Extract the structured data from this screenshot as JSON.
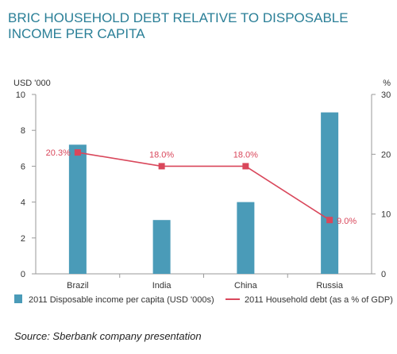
{
  "chart_data": {
    "type": "bar+line",
    "title": "BRIC HOUSEHOLD DEBT RELATIVE TO DISPOSABLE INCOME PER CAPITA",
    "categories": [
      "Brazil",
      "India",
      "China",
      "Russia"
    ],
    "left_axis": {
      "unit": "USD '000",
      "range": [
        0,
        10
      ],
      "ticks": [
        "0",
        "2",
        "4",
        "6",
        "8",
        "10"
      ]
    },
    "right_axis": {
      "unit": "%",
      "range": [
        0,
        30
      ],
      "ticks": [
        "0",
        "10",
        "20",
        "30"
      ]
    },
    "series": [
      {
        "name": "2011 Disposable income per capita (USD '000s)",
        "type": "bar",
        "axis": "left",
        "values": [
          7.2,
          3.0,
          4.0,
          9.0
        ],
        "color": "#4a9bb8"
      },
      {
        "name": "2011 Household debt (as a % of GDP)",
        "type": "line",
        "axis": "right",
        "values": [
          20.3,
          18.0,
          18.0,
          9.0
        ],
        "data_labels": [
          "20.3%",
          "18.0%",
          "18.0%",
          "9.0%"
        ],
        "color": "#d9475b"
      }
    ],
    "grid": false,
    "legend_position": "bottom",
    "source": "Source: Sberbank company presentation"
  }
}
